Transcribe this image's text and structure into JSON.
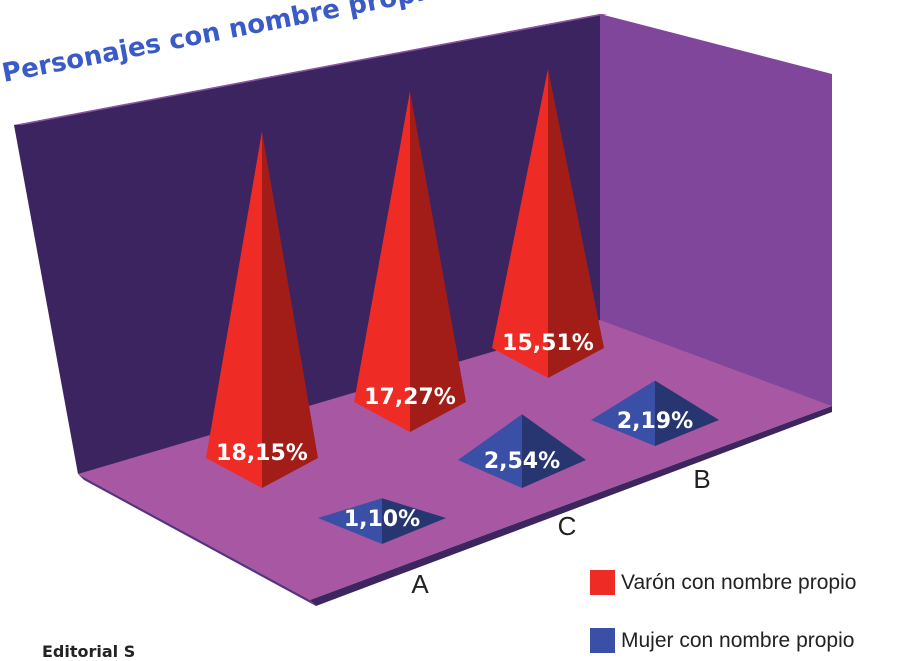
{
  "chart_data": {
    "type": "bar",
    "title": "Personajes con nombre propio por g",
    "categories": [
      "A",
      "C",
      "B"
    ],
    "series": [
      {
        "name": "Varón con nombre propio",
        "color": "#ee2b24",
        "values": [
          18.15,
          17.27,
          15.51
        ],
        "labels": [
          "18,15%",
          "17,27%",
          "15,51%"
        ]
      },
      {
        "name": "Mujer con nombre propio",
        "color": "#3a4fa6",
        "values": [
          1.1,
          2.54,
          2.19
        ],
        "labels": [
          "1,10%",
          "2,54%",
          "2,19%"
        ]
      }
    ],
    "unit": "%",
    "style": "3d-pyramid",
    "legend_position": "bottom-right"
  },
  "colors": {
    "title": "#3a5bc7",
    "back_wall": "#3c2460",
    "side_wall": "#7f469c",
    "floor": "#a857a3",
    "floor_edge": "#3d2560"
  },
  "footer_text": "Editorial S"
}
